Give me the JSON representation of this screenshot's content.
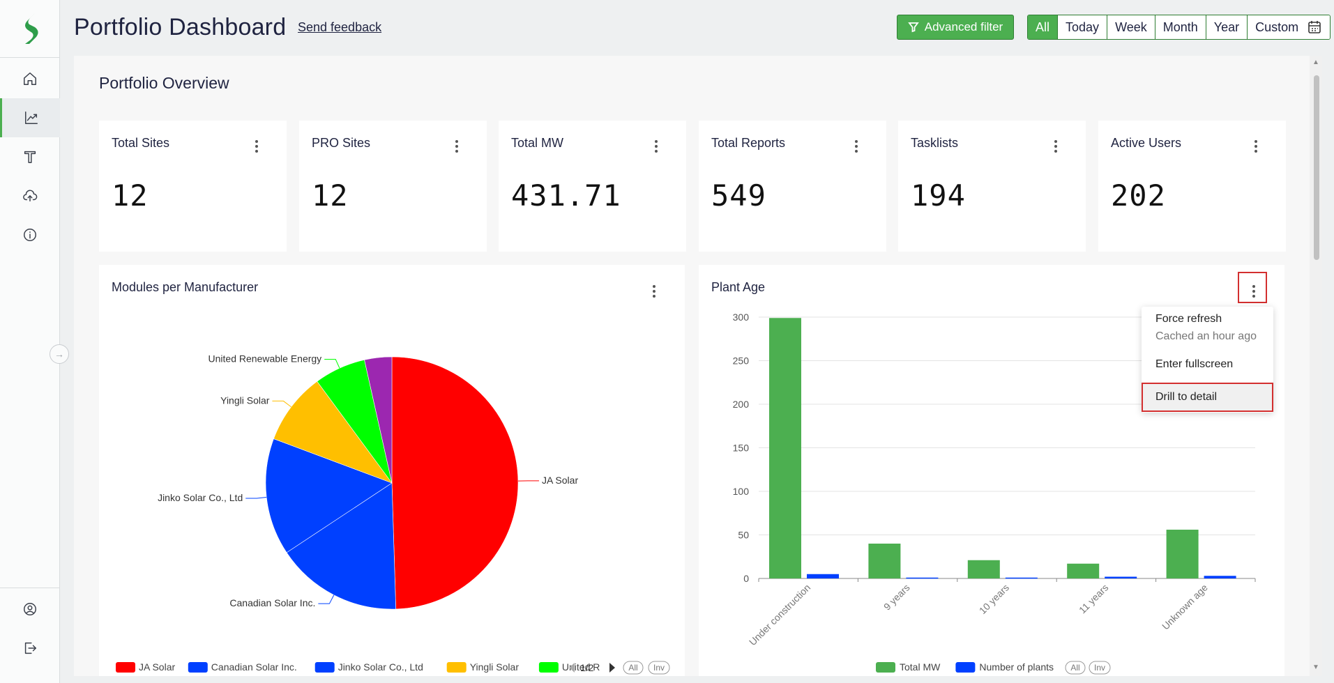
{
  "header": {
    "title": "Portfolio Dashboard",
    "feedback_link": "Send feedback",
    "advanced_filter": "Advanced filter",
    "periods": [
      "All",
      "Today",
      "Week",
      "Month",
      "Year",
      "Custom"
    ],
    "active_period": "All"
  },
  "sidebar": {
    "items": [
      {
        "icon": "home-icon"
      },
      {
        "icon": "trend-chart-icon",
        "active": true
      },
      {
        "icon": "text-tool-icon"
      },
      {
        "icon": "cloud-upload-icon"
      },
      {
        "icon": "info-icon"
      }
    ],
    "bottom_items": [
      {
        "icon": "user-profile-icon"
      },
      {
        "icon": "logout-icon"
      }
    ]
  },
  "overview": {
    "title": "Portfolio Overview",
    "kpis": [
      {
        "label": "Total Sites",
        "value": "12"
      },
      {
        "label": "PRO Sites",
        "value": "12"
      },
      {
        "label": "Total MW",
        "value": "431.71"
      },
      {
        "label": "Total Reports",
        "value": "549"
      },
      {
        "label": "Tasklists",
        "value": "194"
      },
      {
        "label": "Active Users",
        "value": "202"
      }
    ]
  },
  "context_menu": {
    "force_refresh": "Force refresh",
    "cached": "Cached an hour ago",
    "fullscreen": "Enter fullscreen",
    "drill": "Drill to detail"
  },
  "chart_data": [
    {
      "type": "pie",
      "title": "Modules per Manufacturer",
      "categories": [
        "JA Solar",
        "Canadian Solar Inc.",
        "Jinko Solar Co., Ltd",
        "Yingli Solar",
        "United Renewable Energy",
        ""
      ],
      "values": [
        49.5,
        16.2,
        15.0,
        9.2,
        6.6,
        3.5
      ],
      "colors": [
        "#ff0000",
        "#0040ff",
        "#0040ff",
        "#ffbf00",
        "#00ff00",
        "#9c27b0"
      ],
      "legend": {
        "visible": [
          "JA Solar",
          "Canadian Solar Inc.",
          "Jinko Solar Co., Ltd",
          "Yingli Solar",
          "United R"
        ],
        "page": "1/2",
        "buttons": [
          "All",
          "Inv"
        ]
      }
    },
    {
      "type": "bar",
      "title": "Plant Age",
      "categories": [
        "Under construction",
        "9 years",
        "10 years",
        "11 years",
        "Unknown age"
      ],
      "series": [
        {
          "name": "Total MW",
          "values": [
            299,
            40,
            21,
            17,
            56
          ],
          "color": "#4caf50"
        },
        {
          "name": "Number of plants",
          "values": [
            5,
            1,
            1,
            2,
            3
          ],
          "color": "#0040ff"
        }
      ],
      "ylim": [
        0,
        300
      ],
      "yticks": [
        0,
        50,
        100,
        150,
        200,
        250,
        300
      ],
      "grid": true,
      "legend_buttons": [
        "All",
        "Inv"
      ]
    }
  ]
}
